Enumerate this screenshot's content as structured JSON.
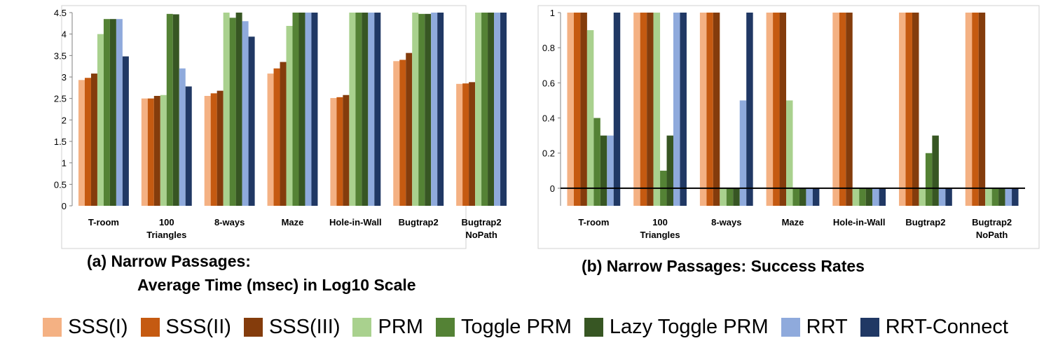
{
  "series_colors": [
    "#f4b183",
    "#c55a11",
    "#843c0c",
    "#a9d18e",
    "#548235",
    "#375623",
    "#8faadc",
    "#203864"
  ],
  "chart_data": [
    {
      "type": "bar",
      "title": "",
      "caption": [
        "(a) Narrow Passages:",
        "Average Time (msec) in Log10 Scale"
      ],
      "xlabel": "",
      "ylabel": "",
      "ylim": [
        0,
        4.5
      ],
      "yticks": [
        "0",
        "0.5",
        "1",
        "1.5",
        "2",
        "2.5",
        "3",
        "3.5",
        "4",
        "4.5"
      ],
      "categories": [
        [
          "T-room"
        ],
        [
          "100",
          "Triangles"
        ],
        [
          "8-ways"
        ],
        [
          "Maze"
        ],
        [
          "Hole-in-Wall"
        ],
        [
          "Bugtrap2"
        ],
        [
          "Bugtrap2",
          "NoPath"
        ]
      ],
      "legend_position": "bottom",
      "grid": false,
      "series": [
        {
          "name": "SSS(I)",
          "values": [
            2.93,
            2.5,
            2.56,
            3.08,
            2.51,
            3.37,
            2.84
          ]
        },
        {
          "name": "SSS(II)",
          "values": [
            2.98,
            2.5,
            2.62,
            3.2,
            2.53,
            3.4,
            2.85
          ]
        },
        {
          "name": "SSS(III)",
          "values": [
            3.08,
            2.56,
            2.68,
            3.35,
            2.58,
            3.56,
            2.88
          ]
        },
        {
          "name": "PRM",
          "values": [
            4.0,
            2.58,
            4.5,
            4.19,
            4.5,
            4.5,
            4.5
          ]
        },
        {
          "name": "Toggle PRM",
          "values": [
            4.35,
            4.47,
            4.38,
            4.5,
            4.5,
            4.47,
            4.5
          ]
        },
        {
          "name": "Lazy Toggle PRM",
          "values": [
            4.35,
            4.46,
            4.5,
            4.5,
            4.5,
            4.47,
            4.5
          ]
        },
        {
          "name": "RRT",
          "values": [
            4.35,
            3.2,
            4.3,
            4.5,
            4.5,
            4.5,
            4.5
          ]
        },
        {
          "name": "RRT-Connect",
          "values": [
            3.48,
            2.78,
            3.94,
            4.5,
            4.5,
            4.5,
            4.5
          ]
        }
      ]
    },
    {
      "type": "bar",
      "title": "",
      "caption": [
        "(b) Narrow Passages: Success Rates"
      ],
      "xlabel": "",
      "ylabel": "",
      "ylim": [
        -0.1,
        1
      ],
      "yticks": [
        "0",
        "0.2",
        "0.4",
        "0.6",
        "0.8",
        "1"
      ],
      "categories": [
        [
          "T-room"
        ],
        [
          "100",
          "Triangles"
        ],
        [
          "8-ways"
        ],
        [
          "Maze"
        ],
        [
          "Hole-in-Wall"
        ],
        [
          "Bugtrap2"
        ],
        [
          "Bugtrap2",
          "NoPath"
        ]
      ],
      "legend_position": "bottom",
      "grid": false,
      "series": [
        {
          "name": "SSS(I)",
          "values": [
            1,
            1,
            1,
            1,
            1,
            1,
            1
          ]
        },
        {
          "name": "SSS(II)",
          "values": [
            1,
            1,
            1,
            1,
            1,
            1,
            1
          ]
        },
        {
          "name": "SSS(III)",
          "values": [
            1,
            1,
            1,
            1,
            1,
            1,
            1
          ]
        },
        {
          "name": "PRM",
          "values": [
            0.9,
            1,
            0,
            0.5,
            0,
            0,
            0
          ]
        },
        {
          "name": "Toggle PRM",
          "values": [
            0.4,
            0.1,
            0,
            0,
            0,
            0.2,
            0
          ]
        },
        {
          "name": "Lazy Toggle PRM",
          "values": [
            0.3,
            0.3,
            0,
            0,
            0,
            0.3,
            0
          ]
        },
        {
          "name": "RRT",
          "values": [
            0.3,
            1,
            0.5,
            0,
            0,
            0,
            0
          ]
        },
        {
          "name": "RRT-Connect",
          "values": [
            1,
            1,
            1,
            0,
            0,
            0,
            0
          ]
        }
      ]
    }
  ]
}
